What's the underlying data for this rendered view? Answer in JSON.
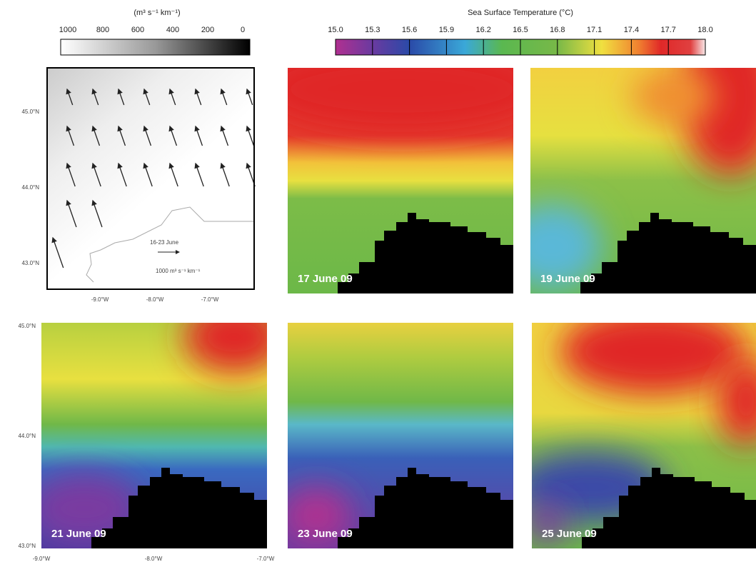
{
  "wind_colorbar": {
    "title": "(m³ s⁻¹ km⁻¹)",
    "ticks": [
      "1000",
      "800",
      "600",
      "400",
      "200",
      "0"
    ]
  },
  "sst_colorbar": {
    "title": "Sea Surface Temperature (°C)",
    "ticks": [
      "15.0",
      "15.3",
      "15.6",
      "15.9",
      "16.2",
      "16.5",
      "16.8",
      "17.1",
      "17.4",
      "17.7",
      "18.0"
    ]
  },
  "wind_panel": {
    "lat_labels": [
      "45.0°N",
      "44.0°N",
      "43.0°N"
    ],
    "lon_labels": [
      "-9.0°W",
      "-8.0°W",
      "-7.0°W"
    ],
    "legend_period": "16-23 June",
    "legend_scale": "1000 m³ s⁻¹ km⁻¹"
  },
  "panels": [
    {
      "label": "17 June 09"
    },
    {
      "label": "19 June 09"
    },
    {
      "label": "21 June 09"
    },
    {
      "label": "23 June 09"
    },
    {
      "label": "25 June 09"
    }
  ],
  "bottom_axis": {
    "lat_labels": [
      "45.0°N",
      "44.0°N",
      "43.0°N"
    ],
    "lon_labels": [
      "-9.0°W",
      "-8.0°W",
      "-7.0°W"
    ]
  }
}
